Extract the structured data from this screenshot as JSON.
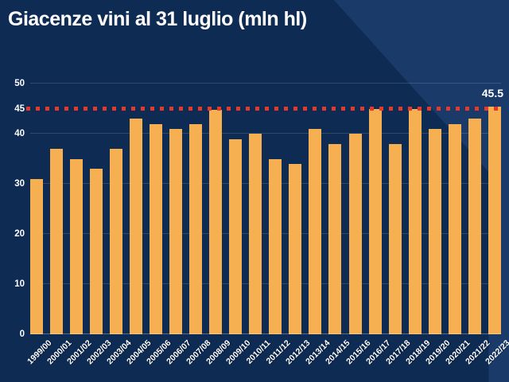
{
  "title": "Giacenze vini al 31 luglio (mln hl)",
  "annotation_label": "45.5",
  "colors": {
    "background": "#0e2b54",
    "background_light_corner": "#1a3a69",
    "bar": "#f6b052",
    "threshold_line": "#e6392e",
    "text": "#ffffff",
    "gridline": "rgba(255,255,255,0.14)"
  },
  "chart_data": {
    "type": "bar",
    "title": "Giacenze vini al 31 luglio (mln hl)",
    "categories": [
      "1999/00",
      "2000/01",
      "2001/02",
      "2002/03",
      "2003/04",
      "2004/05",
      "2005/06",
      "2006/07",
      "2007/08",
      "2008/09",
      "2009/10",
      "2010/11",
      "2011/12",
      "2012/13",
      "2013/14",
      "2014/15",
      "2015/16",
      "2016/17",
      "2017/18",
      "2018/19",
      "2019/20",
      "2020/21",
      "2021/22",
      "2022/23"
    ],
    "values": [
      31,
      37,
      35,
      33,
      37,
      43,
      42,
      41,
      42,
      44.8,
      39,
      40,
      35,
      34,
      41,
      38,
      40,
      45,
      38,
      45,
      41,
      42,
      43,
      45.5
    ],
    "xlabel": "",
    "ylabel": "",
    "ylim": [
      0,
      51
    ],
    "yticks": [
      0,
      10,
      20,
      30,
      40,
      45,
      50
    ],
    "gridline_values": [
      10,
      20,
      30,
      40,
      50
    ],
    "grid": true,
    "legend": false,
    "threshold_line": {
      "value": 45,
      "style": "dotted"
    },
    "data_label": {
      "series_index": 23,
      "text": "45.5"
    }
  }
}
